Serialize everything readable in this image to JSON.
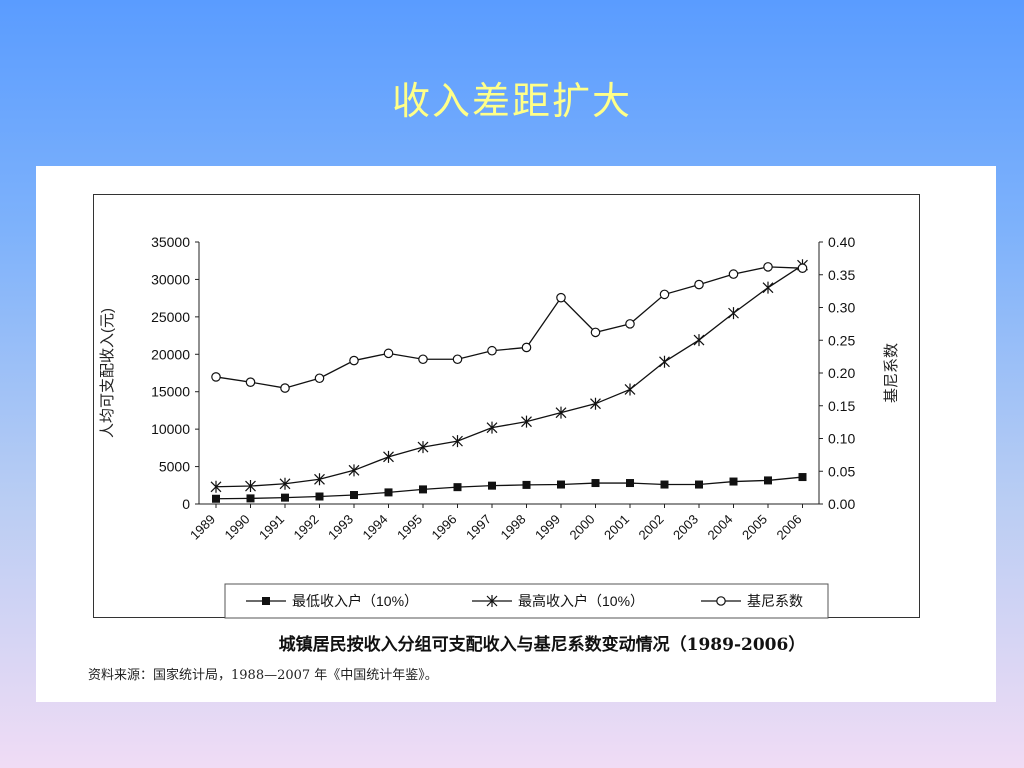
{
  "slide": {
    "title": "收入差距扩大",
    "caption": "城镇居民按收入分组可支配收入与基尼系数变动情况（1989-2006）",
    "source": "资料来源：国家统计局，1988—2007 年《中国统计年鉴》。"
  },
  "chart_data": {
    "type": "line",
    "categories": [
      "1989",
      "1990",
      "1991",
      "1992",
      "1993",
      "1994",
      "1995",
      "1996",
      "1997",
      "1998",
      "1999",
      "2000",
      "2001",
      "2002",
      "2003",
      "2004",
      "2005",
      "2006"
    ],
    "ylabel_left": "人均可支配收入(元)",
    "ylabel_right": "基尼系数",
    "ylim_left": [
      0,
      35000
    ],
    "yticks_left": [
      "0",
      "5000",
      "10000",
      "15000",
      "20000",
      "25000",
      "30000",
      "35000"
    ],
    "ylim_right": [
      0,
      0.4
    ],
    "yticks_right": [
      "0.00",
      "0.05",
      "0.10",
      "0.15",
      "0.20",
      "0.25",
      "0.30",
      "0.35",
      "0.40"
    ],
    "grid": false,
    "legend_position": "bottom",
    "series": [
      {
        "name": "最低收入户（10%）",
        "axis": "left",
        "marker": "square",
        "values": [
          700,
          750,
          850,
          1000,
          1200,
          1550,
          1950,
          2250,
          2450,
          2550,
          2600,
          2800,
          2800,
          2600,
          2600,
          3000,
          3150,
          3600
        ]
      },
      {
        "name": "最高收入户（10%）",
        "axis": "left",
        "marker": "star",
        "values": [
          2300,
          2400,
          2700,
          3300,
          4500,
          6300,
          7600,
          8400,
          10200,
          11000,
          12200,
          13400,
          15300,
          19000,
          21900,
          25500,
          28900,
          31900
        ]
      },
      {
        "name": "基尼系数",
        "axis": "right",
        "marker": "circle",
        "values": [
          0.194,
          0.186,
          0.177,
          0.192,
          0.219,
          0.23,
          0.221,
          0.221,
          0.234,
          0.239,
          0.315,
          0.262,
          0.275,
          0.32,
          0.335,
          0.351,
          0.362,
          0.36
        ]
      }
    ]
  }
}
